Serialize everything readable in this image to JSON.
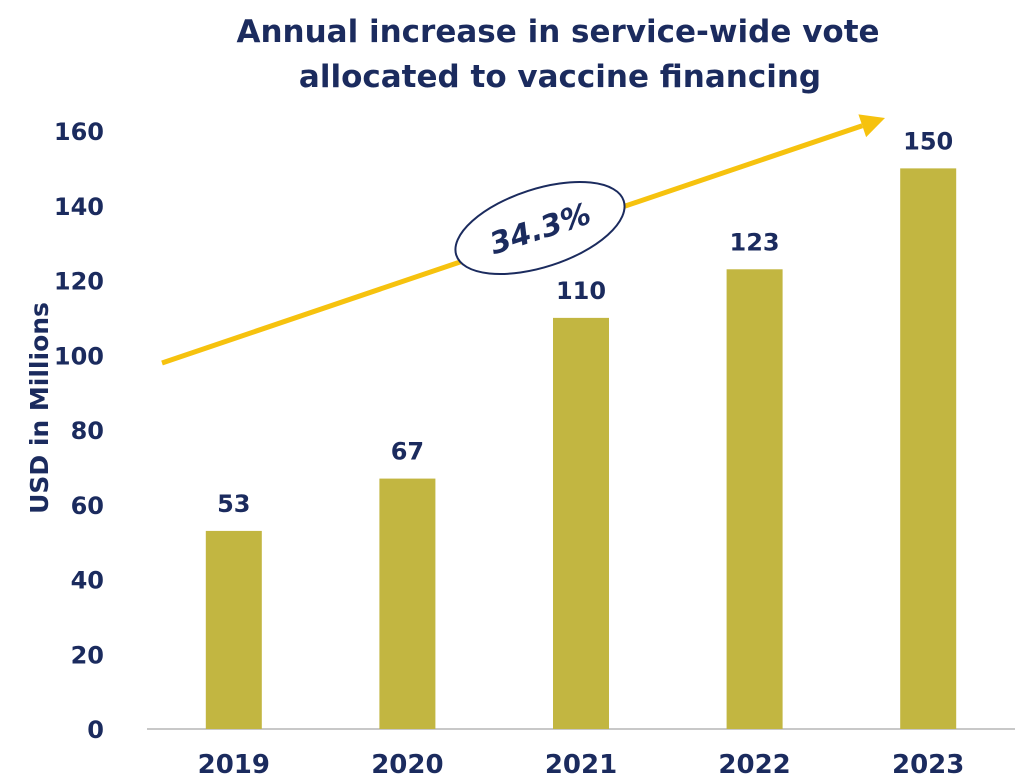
{
  "chart_data": {
    "type": "bar",
    "title_lines": [
      "Annual increase in service-wide vote",
      "allocated to vaccine financing"
    ],
    "xlabel": "",
    "ylabel": "USD in Millions",
    "categories": [
      "2019",
      "2020",
      "2021",
      "2022",
      "2023"
    ],
    "values": [
      53,
      67,
      110,
      123,
      150
    ],
    "data_labels": [
      "53",
      "67",
      "110",
      "123",
      "150"
    ],
    "ylim": [
      0,
      160
    ],
    "yticks": [
      0,
      20,
      40,
      60,
      80,
      100,
      120,
      140,
      160
    ],
    "grid": false,
    "legend": "none",
    "annotation": {
      "text": "34.3%",
      "type": "trend-arrow-with-ellipse-label"
    },
    "colors": {
      "bar": "#C2B641",
      "text": "#1B2B5E",
      "arrow": "#F6C20E",
      "axis": "#A6A6A6"
    }
  }
}
